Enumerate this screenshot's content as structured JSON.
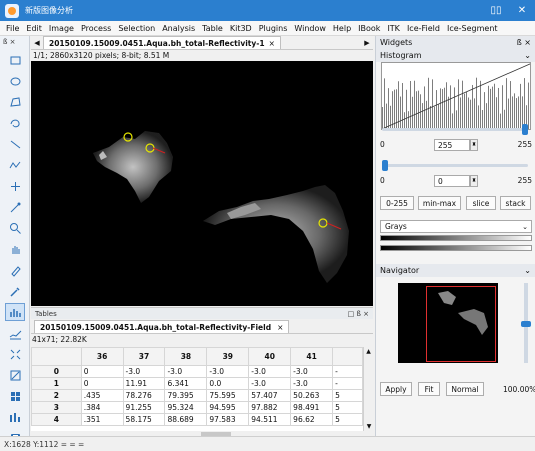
{
  "window": {
    "title": "新版图像分析"
  },
  "menu": [
    "File",
    "Edit",
    "Image",
    "Process",
    "Selection",
    "Analysis",
    "Table",
    "Kit3D",
    "Plugins",
    "Window",
    "Help",
    "IBook",
    "ITK",
    "Ice-Field",
    "Ice-Segment"
  ],
  "toolbar": {
    "header": "ß ×",
    "tools": [
      "rectangle-icon",
      "oval-icon",
      "polygon-icon",
      "freehand-icon",
      "line-icon",
      "polyline-icon",
      "point-icon",
      "wand-icon",
      "magnifier-icon",
      "hand-icon",
      "pencil-icon",
      "picker-icon",
      "histogram-tool-icon",
      "profile-icon",
      "fit-icon",
      "contrast-icon",
      "grid-icon",
      "stats-icon",
      "save-icon",
      "expand-icon"
    ],
    "active_index": 12
  },
  "image_window": {
    "tab": "20150109.15009.0451.Aqua.bh_total-Reflectivity-1",
    "tab_close": "×",
    "nav_prev": "◀",
    "nav_next": "▶",
    "info": "1/1;  2860x3120 pixels; 8-bit; 8.51 M"
  },
  "table_window": {
    "header": "Tables",
    "header_controls": "□ ß ×",
    "tab": "20150109.15009.0451.Aqua.bh_total-Reflectivity-Field",
    "tab_close": "×",
    "info": "41x71; 22.82K",
    "columns": [
      "",
      "36",
      "37",
      "38",
      "39",
      "40",
      "41",
      ""
    ],
    "rows": [
      [
        "0",
        "0",
        "-3.0",
        "-3.0",
        "-3.0",
        "-3.0",
        "-3.0",
        "-"
      ],
      [
        "1",
        "0",
        "11.91",
        "6.341",
        "0.0",
        "-3.0",
        "-3.0",
        "-"
      ],
      [
        "2",
        ".435",
        "78.276",
        "79.395",
        "75.595",
        "57.407",
        "50.263",
        "5"
      ],
      [
        "3",
        ".384",
        "91.255",
        "95.324",
        "94.595",
        "97.882",
        "98.491",
        "5"
      ],
      [
        "4",
        ".351",
        "58.175",
        "88.689",
        "97.583",
        "94.511",
        "96.62",
        "5"
      ]
    ]
  },
  "widgets": {
    "header": "Widgets",
    "header_controls": "ß ×",
    "histogram": {
      "title": "Histogram",
      "min_label": "0",
      "max_label": "255",
      "max_value": "255",
      "min_value": "0",
      "min_slider": 0.0,
      "max_slider": 1.0,
      "buttons": [
        "0-255",
        "min-max",
        "slice",
        "stack"
      ],
      "lut": "Grays"
    },
    "navigator": {
      "title": "Navigator",
      "buttons": [
        "Apply",
        "Fit",
        "Normal"
      ],
      "zoom": "100.00%"
    }
  },
  "status": {
    "text": "X:1628 Y:1112 = = ="
  }
}
